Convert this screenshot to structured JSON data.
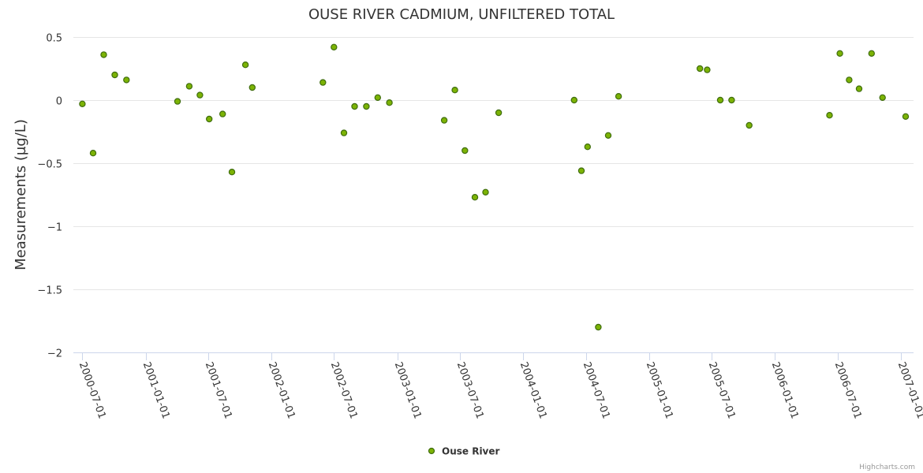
{
  "chart_data": {
    "type": "scatter",
    "title": "OUSE RIVER CADMIUM, UNFILTERED TOTAL",
    "xlabel": "",
    "ylabel": "Measurements (µg/L)",
    "ylim": [
      -2,
      0.5
    ],
    "yticks": [
      {
        "value": 0.5,
        "label": "0.5"
      },
      {
        "value": 0,
        "label": "0"
      },
      {
        "value": -0.5,
        "label": "−0.5"
      },
      {
        "value": -1,
        "label": "−1"
      },
      {
        "value": -1.5,
        "label": "−1.5"
      },
      {
        "value": -2,
        "label": "−2"
      }
    ],
    "xlim": [
      "2000-06-30",
      "2007-01-15"
    ],
    "xticks": [
      "2000-07-01",
      "2001-01-01",
      "2001-07-01",
      "2002-01-01",
      "2002-07-01",
      "2003-01-01",
      "2003-07-01",
      "2004-01-01",
      "2004-07-01",
      "2005-01-01",
      "2005-07-01",
      "2006-01-01",
      "2006-07-01",
      "2007-01-01"
    ],
    "grid": true,
    "legend_position": "bottom-center",
    "color": "#7CB305",
    "marker_border": "#3F6D0E",
    "series": [
      {
        "name": "Ouse River",
        "points": [
          {
            "x": "2000-07-01",
            "y": -0.03
          },
          {
            "x": "2000-08-01",
            "y": -0.42
          },
          {
            "x": "2000-09-01",
            "y": 0.36
          },
          {
            "x": "2000-10-03",
            "y": 0.2
          },
          {
            "x": "2000-11-06",
            "y": 0.16
          },
          {
            "x": "2001-04-03",
            "y": -0.01
          },
          {
            "x": "2001-05-07",
            "y": 0.11
          },
          {
            "x": "2001-06-07",
            "y": 0.04
          },
          {
            "x": "2001-07-04",
            "y": -0.15
          },
          {
            "x": "2001-08-12",
            "y": -0.11
          },
          {
            "x": "2001-09-08",
            "y": -0.57
          },
          {
            "x": "2001-10-17",
            "y": 0.28
          },
          {
            "x": "2001-11-06",
            "y": 0.1
          },
          {
            "x": "2002-05-30",
            "y": 0.14
          },
          {
            "x": "2002-07-01",
            "y": 0.42
          },
          {
            "x": "2002-07-30",
            "y": -0.26
          },
          {
            "x": "2002-08-30",
            "y": -0.05
          },
          {
            "x": "2002-10-03",
            "y": -0.05
          },
          {
            "x": "2002-11-05",
            "y": 0.02
          },
          {
            "x": "2002-12-09",
            "y": -0.02
          },
          {
            "x": "2003-05-17",
            "y": -0.16
          },
          {
            "x": "2003-06-17",
            "y": 0.08
          },
          {
            "x": "2003-07-16",
            "y": -0.4
          },
          {
            "x": "2003-08-14",
            "y": -0.77
          },
          {
            "x": "2003-09-14",
            "y": -0.73
          },
          {
            "x": "2003-10-22",
            "y": -0.1
          },
          {
            "x": "2004-05-28",
            "y": 0.0
          },
          {
            "x": "2004-06-18",
            "y": -0.56
          },
          {
            "x": "2004-07-06",
            "y": -0.37
          },
          {
            "x": "2004-08-06",
            "y": -1.8
          },
          {
            "x": "2004-09-04",
            "y": -0.28
          },
          {
            "x": "2004-10-04",
            "y": 0.03
          },
          {
            "x": "2005-05-28",
            "y": 0.25
          },
          {
            "x": "2005-06-18",
            "y": 0.24
          },
          {
            "x": "2005-07-26",
            "y": 0.0
          },
          {
            "x": "2005-08-28",
            "y": 0.0
          },
          {
            "x": "2005-10-18",
            "y": -0.2
          },
          {
            "x": "2006-06-08",
            "y": -0.12
          },
          {
            "x": "2006-07-08",
            "y": 0.37
          },
          {
            "x": "2006-08-04",
            "y": 0.16
          },
          {
            "x": "2006-09-02",
            "y": 0.09
          },
          {
            "x": "2006-10-08",
            "y": 0.37
          },
          {
            "x": "2006-11-09",
            "y": 0.02
          },
          {
            "x": "2007-01-15",
            "y": -0.13
          }
        ]
      }
    ]
  },
  "legend": {
    "label": "Ouse River"
  },
  "credits": "Highcharts.com"
}
